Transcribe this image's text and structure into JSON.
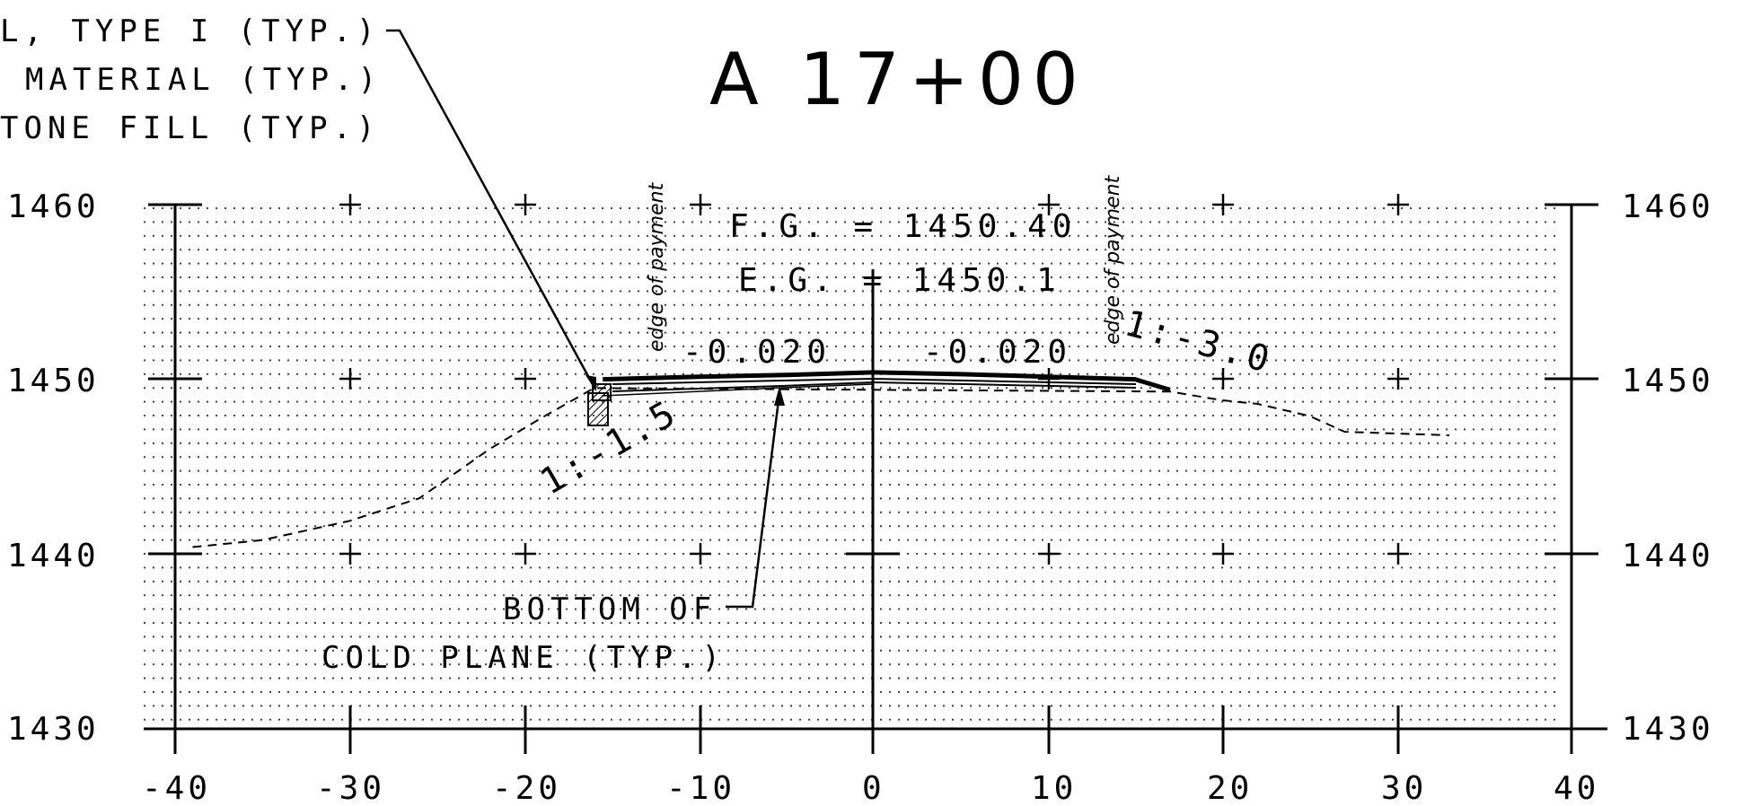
{
  "title": "A 17+00",
  "notes": {
    "top_lines": [
      "L, TYPE I (TYP.)",
      "MATERIAL (TYP.)",
      "TONE FILL (TYP.)"
    ],
    "bottom_line1": "BOTTOM OF",
    "bottom_line2": "COLD PLANE (TYP.)"
  },
  "grades": {
    "fc": "F.G. = 1450.40",
    "eg": "E.G. = 1450.1",
    "slope_left": "-0.020",
    "slope_right": "-0.020",
    "side_left": "1:-1.5",
    "side_right": "1:-3.0"
  },
  "edge_label": "edge of payment",
  "axes": {
    "x_ticks": [
      "-40",
      "-30",
      "-20",
      "-10",
      "0",
      "10",
      "20",
      "30",
      "40"
    ],
    "y_ticks": [
      "1460",
      "1450",
      "1440",
      "1430"
    ]
  },
  "chart_data": {
    "type": "line",
    "xlim": [
      -40,
      40
    ],
    "ylim": [
      1430,
      1460
    ],
    "grid": true,
    "series": [
      {
        "style": "dashed",
        "x": [
          -39,
          -35,
          -30,
          -26,
          -22,
          -19,
          -16,
          17,
          20,
          22,
          25,
          27,
          30,
          33
        ],
        "y": [
          1440.4,
          1440.8,
          1441.9,
          1443.2,
          1446.0,
          1447.8,
          1449.5,
          1449.3,
          1448.8,
          1448.6,
          1447.9,
          1447.0,
          1446.9,
          1446.8
        ]
      },
      {
        "style": "thick",
        "x": [
          -15.5,
          -10,
          -5,
          0,
          5,
          10,
          15,
          17
        ],
        "y": [
          1450.0,
          1450.15,
          1450.25,
          1450.4,
          1450.3,
          1450.15,
          1450.0,
          1449.4
        ]
      }
    ]
  }
}
